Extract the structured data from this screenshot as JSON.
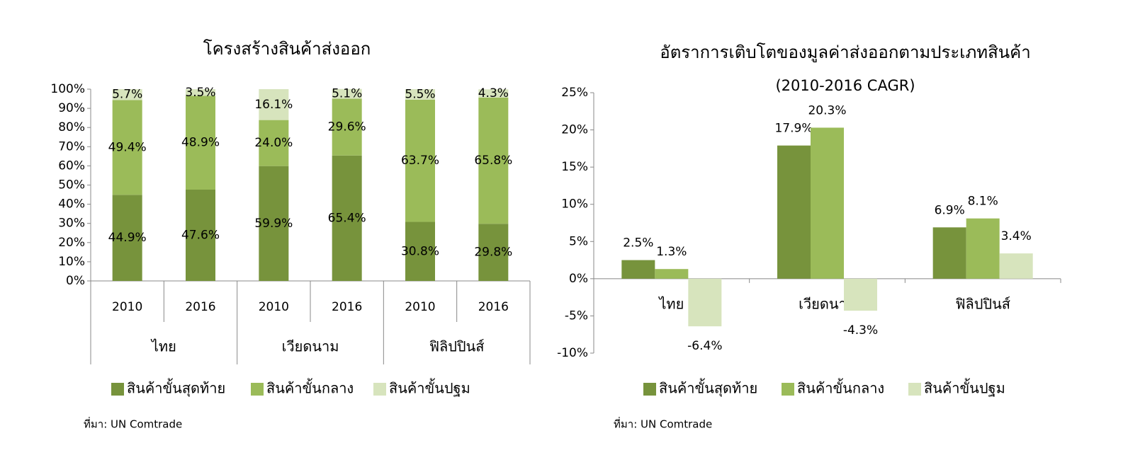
{
  "chart_data": [
    {
      "type": "stacked_bar",
      "title": "โครงสร้างสินค้าส่งออก",
      "categories": [
        "2010",
        "2016",
        "2010",
        "2016",
        "2010",
        "2016"
      ],
      "groups": [
        "ไทย",
        "เวียดนาม",
        "ฟิลิปปินส์"
      ],
      "series": [
        {
          "name": "สินค้าขั้นสุดท้าย",
          "color": "#77933c",
          "values": [
            44.9,
            47.6,
            59.9,
            65.4,
            30.8,
            29.8
          ],
          "value_labels": [
            "44.9%",
            "47.6%",
            "59.9%",
            "65.4%",
            "30.8%",
            "29.8%"
          ]
        },
        {
          "name": "สินค้าขั้นกลาง",
          "color": "#9bbb59",
          "values": [
            49.4,
            48.9,
            24.0,
            29.6,
            63.7,
            65.8
          ],
          "value_labels": [
            "49.4%",
            "48.9%",
            "24.0%",
            "29.6%",
            "63.7%",
            "65.8%"
          ]
        },
        {
          "name": "สินค้าขั้นปฐม",
          "color": "#d7e4bd",
          "values": [
            5.7,
            3.5,
            16.1,
            5.1,
            5.5,
            4.3
          ],
          "value_labels": [
            "5.7%",
            "3.5%",
            "16.1%",
            "5.1%",
            "5.5%",
            "4.3%"
          ]
        }
      ],
      "ylim": [
        0,
        100
      ],
      "yticks": [
        {
          "value": 0,
          "label": "0%"
        },
        {
          "value": 10,
          "label": "10%"
        },
        {
          "value": 20,
          "label": "20%"
        },
        {
          "value": 30,
          "label": "30%"
        },
        {
          "value": 40,
          "label": "40%"
        },
        {
          "value": 50,
          "label": "50%"
        },
        {
          "value": 60,
          "label": "60%"
        },
        {
          "value": 70,
          "label": "70%"
        },
        {
          "value": 80,
          "label": "80%"
        },
        {
          "value": 90,
          "label": "90%"
        },
        {
          "value": 100,
          "label": "100%"
        }
      ],
      "source": "ที่มา: UN Comtrade"
    },
    {
      "type": "bar",
      "title": "อัตราการเติบโตของมูลค่าส่งออกตามประเภทสินค้า",
      "subtitle": "(2010-2016 CAGR)",
      "categories": [
        "ไทย",
        "เวียดนาม",
        "ฟิลิปปินส์"
      ],
      "series": [
        {
          "name": "สินค้าขั้นสุดท้าย",
          "color": "#77933c",
          "values": [
            2.5,
            17.9,
            6.9
          ],
          "value_labels": [
            "2.5%",
            "17.9%",
            "6.9%"
          ]
        },
        {
          "name": "สินค้าขั้นกลาง",
          "color": "#9bbb59",
          "values": [
            1.3,
            20.3,
            8.1
          ],
          "value_labels": [
            "1.3%",
            "20.3%",
            "8.1%"
          ]
        },
        {
          "name": "สินค้าขั้นปฐม",
          "color": "#d7e4bd",
          "values": [
            -6.4,
            -4.3,
            3.4
          ],
          "value_labels": [
            "-6.4%",
            "-4.3%",
            "3.4%"
          ]
        }
      ],
      "ylim": [
        -10,
        25
      ],
      "yticks": [
        {
          "value": -10,
          "label": "-10%"
        },
        {
          "value": -5,
          "label": "-5%"
        },
        {
          "value": 0,
          "label": "0%"
        },
        {
          "value": 5,
          "label": "5%"
        },
        {
          "value": 10,
          "label": "10%"
        },
        {
          "value": 15,
          "label": "15%"
        },
        {
          "value": 20,
          "label": "20%"
        },
        {
          "value": 25,
          "label": "25%"
        }
      ],
      "source": "ที่มา: UN Comtrade"
    }
  ]
}
